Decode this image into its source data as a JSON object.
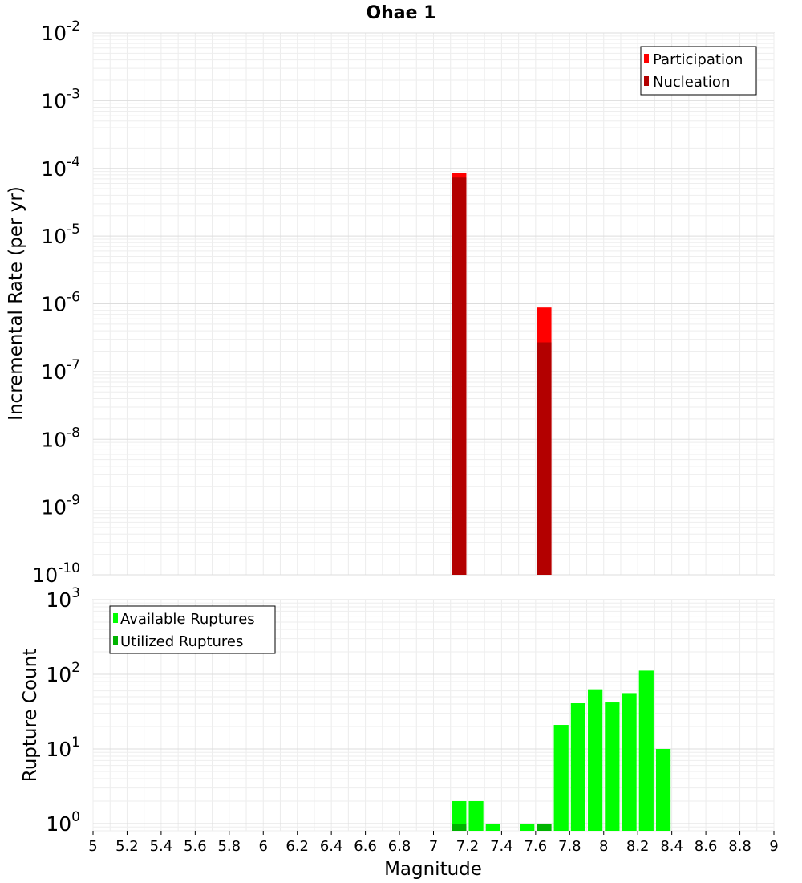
{
  "chart_data": [
    {
      "type": "bar",
      "title": "Ohae 1",
      "xlabel": "",
      "ylabel": "Incremental Rate (per yr)",
      "yscale": "log",
      "ylim": [
        1e-10,
        0.01
      ],
      "xlim": [
        5,
        9
      ],
      "bin_width": 0.1,
      "y_tick_labels": [
        {
          "base": "10",
          "exp": "-10",
          "value": 1e-10
        },
        {
          "base": "10",
          "exp": "-9",
          "value": 1e-09
        },
        {
          "base": "10",
          "exp": "-8",
          "value": 1e-08
        },
        {
          "base": "10",
          "exp": "-7",
          "value": 1e-07
        },
        {
          "base": "10",
          "exp": "-6",
          "value": 1e-06
        },
        {
          "base": "10",
          "exp": "-5",
          "value": 1e-05
        },
        {
          "base": "10",
          "exp": "-4",
          "value": 0.0001
        },
        {
          "base": "10",
          "exp": "-3",
          "value": 0.001
        },
        {
          "base": "10",
          "exp": "-2",
          "value": 0.01
        }
      ],
      "legend_position": "top-right",
      "grid": true,
      "series": [
        {
          "name": "Participation",
          "color": "#ff0000",
          "x": [
            7.15,
            7.65
          ],
          "values": [
            8.5e-05,
            8.8e-07
          ]
        },
        {
          "name": "Nucleation",
          "color": "#b30000",
          "x": [
            7.15,
            7.65
          ],
          "values": [
            7.3e-05,
            2.7e-07
          ]
        }
      ]
    },
    {
      "type": "bar",
      "title": "",
      "xlabel": "Magnitude",
      "ylabel": "Rupture Count",
      "yscale": "log",
      "ylim": [
        0.8,
        1000
      ],
      "xlim": [
        5,
        9
      ],
      "bin_width": 0.1,
      "x_tick_labels": [
        "5",
        "5.2",
        "5.4",
        "5.6",
        "5.8",
        "6",
        "6.2",
        "6.4",
        "6.6",
        "6.8",
        "7",
        "7.2",
        "7.4",
        "7.6",
        "7.8",
        "8",
        "8.2",
        "8.4",
        "8.6",
        "8.8",
        "9"
      ],
      "y_tick_labels": [
        {
          "base": "10",
          "exp": "0",
          "value": 1
        },
        {
          "base": "10",
          "exp": "1",
          "value": 10
        },
        {
          "base": "10",
          "exp": "2",
          "value": 100
        },
        {
          "base": "10",
          "exp": "3",
          "value": 1000
        }
      ],
      "legend_position": "top-left",
      "grid": true,
      "series": [
        {
          "name": "Available Ruptures",
          "color": "#00ff00",
          "x": [
            7.15,
            7.25,
            7.35,
            7.55,
            7.65,
            7.75,
            7.85,
            7.95,
            8.05,
            8.15,
            8.25,
            8.35
          ],
          "values": [
            2,
            2,
            1,
            1,
            1,
            21,
            41,
            63,
            42,
            56,
            112,
            10
          ]
        },
        {
          "name": "Utilized Ruptures",
          "color": "#00b300",
          "x": [
            7.15,
            7.65
          ],
          "values": [
            1,
            1
          ]
        }
      ]
    }
  ]
}
